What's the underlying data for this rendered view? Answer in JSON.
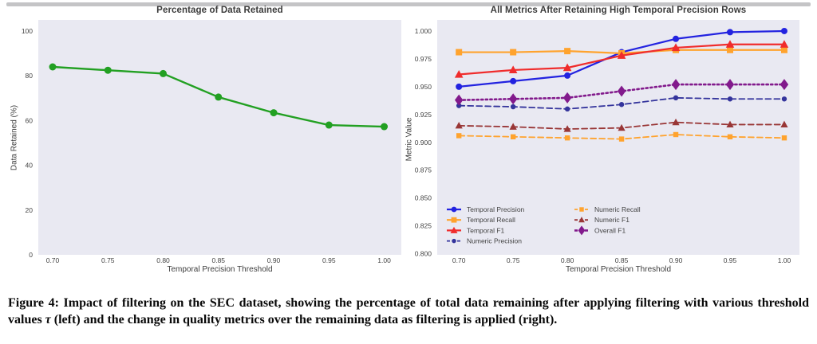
{
  "top_bar_color": "#c4c4c6",
  "caption": {
    "part1": "Figure 4: Impact of filtering on the SEC dataset, showing the percentage of total data remaining after applying filtering with various threshold values ",
    "tau": "τ",
    "part2": " (left) and the change in quality metrics over the remaining data as filtering is applied (right)."
  },
  "chart_data": [
    {
      "type": "line",
      "title": "Percentage of Data Retained",
      "xlabel": "Temporal Precision Threshold",
      "ylabel": "Data Retained (%)",
      "plot_bg": "#e9e9f2",
      "grid": false,
      "x": [
        0.7,
        0.75,
        0.8,
        0.85,
        0.9,
        0.95,
        1.0
      ],
      "x_ticks": {
        "values": [
          0.7,
          0.75,
          0.8,
          0.85,
          0.9,
          0.95,
          1.0
        ],
        "labels": [
          "0.70",
          "0.75",
          "0.80",
          "0.85",
          "0.90",
          "0.95",
          "1.00"
        ]
      },
      "y_ticks": {
        "values": [
          0,
          20,
          40,
          60,
          80,
          100
        ],
        "labels": [
          "0",
          "20",
          "40",
          "60",
          "80",
          "100"
        ]
      },
      "xlim": [
        0.687,
        1.0155
      ],
      "ylim": [
        0,
        105
      ],
      "series": [
        {
          "name": "Data Retained",
          "color": "#22a022",
          "style": "solid",
          "marker": "circle",
          "marker_size": 4.5,
          "line_width": 2.4,
          "values": [
            84,
            82.5,
            81,
            70.5,
            63.5,
            58,
            57.3
          ]
        }
      ]
    },
    {
      "type": "line",
      "title": "All Metrics After Retaining High Temporal Precision Rows",
      "xlabel": "Temporal Precision Threshold",
      "ylabel": "Metric Value",
      "plot_bg": "#e9e9f2",
      "grid": false,
      "legend": {
        "position": "lower left",
        "columns": 2
      },
      "x": [
        0.7,
        0.75,
        0.8,
        0.85,
        0.9,
        0.95,
        1.0
      ],
      "x_ticks": {
        "values": [
          0.7,
          0.75,
          0.8,
          0.85,
          0.9,
          0.95,
          1.0
        ],
        "labels": [
          "0.70",
          "0.75",
          "0.80",
          "0.85",
          "0.90",
          "0.95",
          "1.00"
        ]
      },
      "y_ticks": {
        "values": [
          0.8,
          0.825,
          0.85,
          0.875,
          0.9,
          0.925,
          0.95,
          0.975,
          1.0
        ],
        "labels": [
          "0.800",
          "0.825",
          "0.850",
          "0.875",
          "0.900",
          "0.925",
          "0.950",
          "0.975",
          "1.000"
        ]
      },
      "xlim": [
        0.68,
        1.014
      ],
      "ylim": [
        0.799,
        1.01
      ],
      "series": [
        {
          "name": "Temporal Precision",
          "color": "#2323e0",
          "style": "solid",
          "marker": "circle",
          "marker_size": 4,
          "line_width": 2.2,
          "values": [
            0.95,
            0.955,
            0.96,
            0.981,
            0.993,
            0.999,
            1.0
          ]
        },
        {
          "name": "Temporal Recall",
          "color": "#ffa32e",
          "style": "solid",
          "marker": "square",
          "marker_size": 4,
          "line_width": 2.2,
          "values": [
            0.981,
            0.981,
            0.982,
            0.98,
            0.983,
            0.983,
            0.983
          ]
        },
        {
          "name": "Temporal F1",
          "color": "#f02c2c",
          "style": "solid",
          "marker": "triangle",
          "marker_size": 4.6,
          "line_width": 2.2,
          "values": [
            0.961,
            0.965,
            0.967,
            0.978,
            0.985,
            0.988,
            0.988
          ]
        },
        {
          "name": "Numeric Precision",
          "color": "#34349c",
          "style": "dashed",
          "marker": "circle",
          "marker_size": 3.2,
          "line_width": 1.8,
          "values": [
            0.933,
            0.932,
            0.93,
            0.934,
            0.94,
            0.939,
            0.939
          ]
        },
        {
          "name": "Numeric Recall",
          "color": "#ffa32e",
          "style": "dashed",
          "marker": "square",
          "marker_size": 3.2,
          "line_width": 1.8,
          "values": [
            0.906,
            0.905,
            0.904,
            0.903,
            0.907,
            0.905,
            0.904
          ]
        },
        {
          "name": "Numeric F1",
          "color": "#993636",
          "style": "dashed",
          "marker": "triangle",
          "marker_size": 4,
          "line_width": 1.8,
          "values": [
            0.915,
            0.914,
            0.912,
            0.913,
            0.918,
            0.916,
            0.916
          ]
        },
        {
          "name": "Overall F1",
          "color": "#821a8c",
          "style": "dotted",
          "marker": "diamond",
          "marker_size": 5.2,
          "line_width": 2.6,
          "values": [
            0.938,
            0.939,
            0.94,
            0.946,
            0.952,
            0.952,
            0.952
          ]
        }
      ]
    }
  ]
}
